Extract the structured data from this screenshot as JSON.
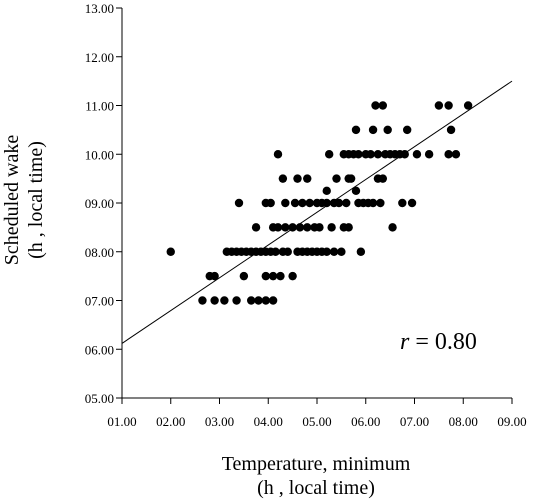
{
  "chart_data": {
    "type": "scatter",
    "xlabel_line1": "Temperature, minimum",
    "xlabel_line2": "(h , local time)",
    "ylabel_line1": "Scheduled wake",
    "ylabel_line2": "(h , local time)",
    "x_ticks": [
      "01.00",
      "02.00",
      "03.00",
      "04.00",
      "05.00",
      "06.00",
      "07.00",
      "08.00",
      "09.00"
    ],
    "y_ticks": [
      "05.00",
      "06.00",
      "07.00",
      "08.00",
      "09.00",
      "10.00",
      "11.00",
      "12.00",
      "13.00"
    ],
    "xlim": [
      1,
      9
    ],
    "ylim": [
      5,
      13
    ],
    "grid": false,
    "annotation": {
      "italic": "r",
      "text": " = 0.80"
    },
    "regression_line": {
      "start": [
        1,
        6.12
      ],
      "end": [
        9,
        11.5
      ]
    },
    "points": [
      [
        2.0,
        8.0
      ],
      [
        2.65,
        7.0
      ],
      [
        2.8,
        7.5
      ],
      [
        2.9,
        7.5
      ],
      [
        2.9,
        7.0
      ],
      [
        3.1,
        7.0
      ],
      [
        3.15,
        8.0
      ],
      [
        3.25,
        8.0
      ],
      [
        3.35,
        8.0
      ],
      [
        3.45,
        8.0
      ],
      [
        3.55,
        8.0
      ],
      [
        3.65,
        8.0
      ],
      [
        3.75,
        8.0
      ],
      [
        3.85,
        8.0
      ],
      [
        3.95,
        8.0
      ],
      [
        4.05,
        8.0
      ],
      [
        4.15,
        8.0
      ],
      [
        3.35,
        7.0
      ],
      [
        3.5,
        7.5
      ],
      [
        3.4,
        9.0
      ],
      [
        3.65,
        7.0
      ],
      [
        3.75,
        8.5
      ],
      [
        3.8,
        7.0
      ],
      [
        3.95,
        7.5
      ],
      [
        3.95,
        7.0
      ],
      [
        4.1,
        7.5
      ],
      [
        4.1,
        7.0
      ],
      [
        3.95,
        9.0
      ],
      [
        4.05,
        9.0
      ],
      [
        4.1,
        8.5
      ],
      [
        4.2,
        10.0
      ],
      [
        4.2,
        8.5
      ],
      [
        4.25,
        7.5
      ],
      [
        4.3,
        9.5
      ],
      [
        4.3,
        8.0
      ],
      [
        4.35,
        8.5
      ],
      [
        4.35,
        9.0
      ],
      [
        4.4,
        8.0
      ],
      [
        4.5,
        7.5
      ],
      [
        4.5,
        8.5
      ],
      [
        4.55,
        9.0
      ],
      [
        4.6,
        9.5
      ],
      [
        4.6,
        8.0
      ],
      [
        4.65,
        8.5
      ],
      [
        4.7,
        9.0
      ],
      [
        4.7,
        8.0
      ],
      [
        4.8,
        9.5
      ],
      [
        4.8,
        8.5
      ],
      [
        4.8,
        8.0
      ],
      [
        4.85,
        9.0
      ],
      [
        4.9,
        8.0
      ],
      [
        4.95,
        8.5
      ],
      [
        5.0,
        9.0
      ],
      [
        5.0,
        8.0
      ],
      [
        5.05,
        8.5
      ],
      [
        5.1,
        9.0
      ],
      [
        5.1,
        8.0
      ],
      [
        5.2,
        9.25
      ],
      [
        5.2,
        9.0
      ],
      [
        5.2,
        8.0
      ],
      [
        5.25,
        10.0
      ],
      [
        5.3,
        8.5
      ],
      [
        5.35,
        9.0
      ],
      [
        5.35,
        8.0
      ],
      [
        5.4,
        9.5
      ],
      [
        5.45,
        9.0
      ],
      [
        5.5,
        8.0
      ],
      [
        5.55,
        10.0
      ],
      [
        5.55,
        8.5
      ],
      [
        5.6,
        9.0
      ],
      [
        5.65,
        10.0
      ],
      [
        5.65,
        9.5
      ],
      [
        5.65,
        8.5
      ],
      [
        5.7,
        9.5
      ],
      [
        5.75,
        10.0
      ],
      [
        5.8,
        10.5
      ],
      [
        5.8,
        9.25
      ],
      [
        5.85,
        9.0
      ],
      [
        5.85,
        10.0
      ],
      [
        5.9,
        8.0
      ],
      [
        5.95,
        9.0
      ],
      [
        6.0,
        10.0
      ],
      [
        6.05,
        9.0
      ],
      [
        6.1,
        10.0
      ],
      [
        6.15,
        10.5
      ],
      [
        6.15,
        9.0
      ],
      [
        6.2,
        11.0
      ],
      [
        6.25,
        9.5
      ],
      [
        6.25,
        10.0
      ],
      [
        6.3,
        9.0
      ],
      [
        6.35,
        11.0
      ],
      [
        6.35,
        9.5
      ],
      [
        6.4,
        10.0
      ],
      [
        6.45,
        10.5
      ],
      [
        6.5,
        10.0
      ],
      [
        6.55,
        8.5
      ],
      [
        6.6,
        10.0
      ],
      [
        6.7,
        10.0
      ],
      [
        6.75,
        9.0
      ],
      [
        6.8,
        10.0
      ],
      [
        6.85,
        10.5
      ],
      [
        6.95,
        9.0
      ],
      [
        7.05,
        10.0
      ],
      [
        7.3,
        10.0
      ],
      [
        7.5,
        11.0
      ],
      [
        7.7,
        11.0
      ],
      [
        7.75,
        10.5
      ],
      [
        7.7,
        10.0
      ],
      [
        7.85,
        10.0
      ],
      [
        8.1,
        11.0
      ]
    ]
  }
}
